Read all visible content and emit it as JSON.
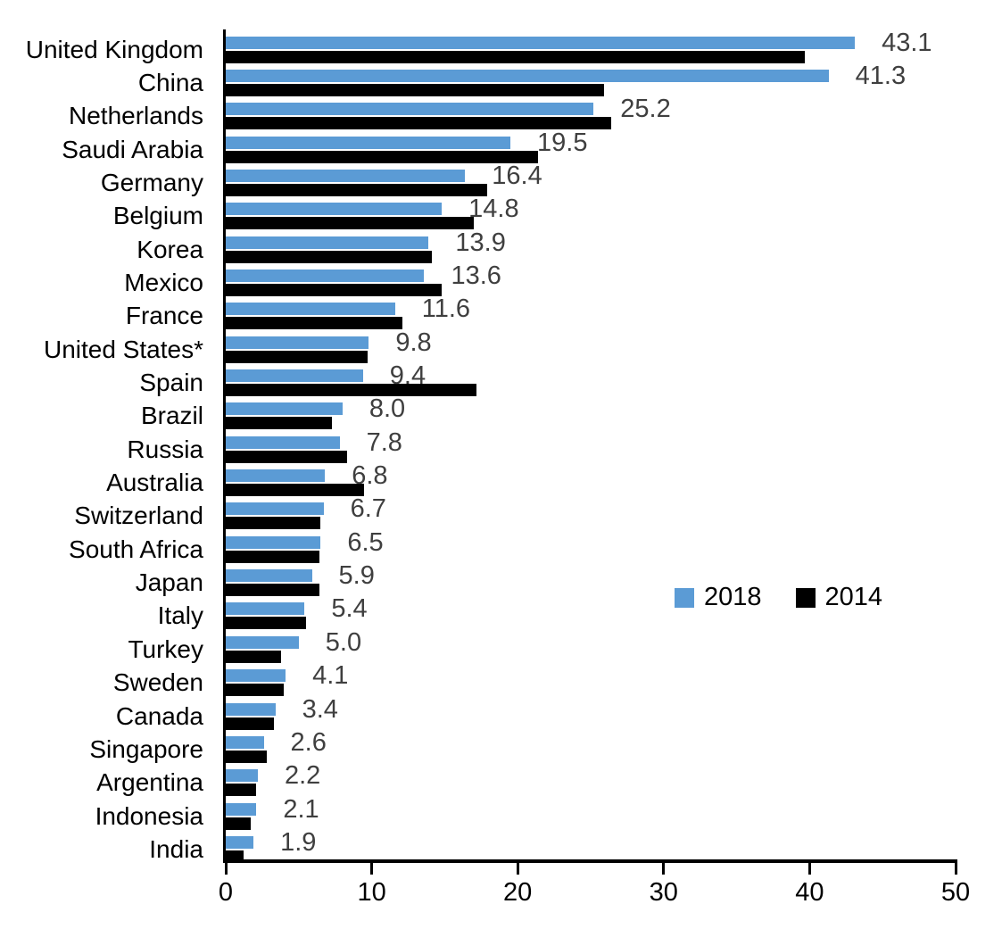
{
  "chart_data": {
    "type": "bar",
    "orientation": "horizontal",
    "title": "",
    "xlabel": "",
    "ylabel": "",
    "xlim": [
      0,
      50
    ],
    "x_ticks": [
      0,
      10,
      20,
      30,
      40,
      50
    ],
    "grid": false,
    "legend_position": "center-right",
    "categories": [
      "United Kingdom",
      "China",
      "Netherlands",
      "Saudi Arabia",
      "Germany",
      "Belgium",
      "Korea",
      "Mexico",
      "France",
      "United States*",
      "Spain",
      "Brazil",
      "Russia",
      "Australia",
      "Switzerland",
      "South Africa",
      "Japan",
      "Italy",
      "Turkey",
      "Sweden",
      "Canada",
      "Singapore",
      "Argentina",
      "Indonesia",
      "India"
    ],
    "series": [
      {
        "name": "2018",
        "color": "#5b9bd5",
        "values": [
          43.1,
          41.3,
          25.2,
          19.5,
          16.4,
          14.8,
          13.9,
          13.6,
          11.6,
          9.8,
          9.4,
          8.0,
          7.8,
          6.8,
          6.7,
          6.5,
          5.9,
          5.4,
          5.0,
          4.1,
          3.4,
          2.6,
          2.2,
          2.1,
          1.9
        ]
      },
      {
        "name": "2014",
        "color": "#000000",
        "values": [
          39.7,
          25.9,
          26.4,
          21.4,
          17.9,
          17.0,
          14.1,
          14.8,
          12.1,
          9.7,
          17.2,
          7.3,
          8.3,
          9.5,
          6.5,
          6.4,
          6.4,
          5.5,
          3.8,
          4.0,
          3.3,
          2.8,
          2.1,
          1.7,
          1.2
        ]
      }
    ],
    "data_labels": {
      "series": "2018",
      "decimals": 1
    },
    "text_colors": {
      "category": "#000000",
      "value_label": "#3f3f3f",
      "tick": "#000000"
    }
  },
  "legend": {
    "item_2018": "2018",
    "item_2014": "2014"
  }
}
